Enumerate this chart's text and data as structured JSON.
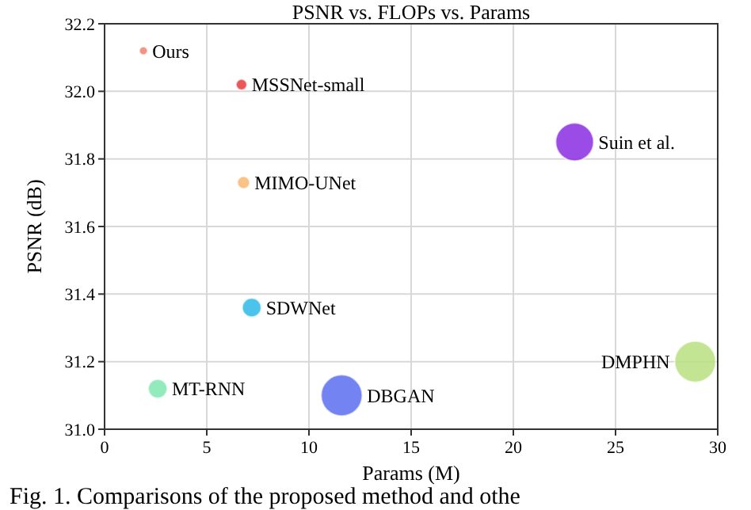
{
  "chart_data": {
    "type": "bubble",
    "title": "PSNR vs. FLOPs vs. Params",
    "xlabel": "Params (M)",
    "ylabel": "PSNR (dB)",
    "series": [
      {
        "name": "Ours",
        "color": "#f08070",
        "x": [
          1.9
        ],
        "values": [
          32.12
        ],
        "sizes": [
          0.04
        ]
      },
      {
        "name": "MSSNet-small",
        "color": "#e83a3a",
        "x": [
          6.7
        ],
        "values": [
          32.02
        ],
        "sizes": [
          0.07
        ]
      },
      {
        "name": "MIMO-UNet",
        "color": "#f8b870",
        "x": [
          6.8
        ],
        "values": [
          31.73
        ],
        "sizes": [
          0.09
        ]
      },
      {
        "name": "Suin et al.",
        "color": "#8a2be2",
        "x": [
          23.0
        ],
        "values": [
          31.85
        ],
        "sizes": [
          0.85
        ]
      },
      {
        "name": "SDWNet",
        "color": "#2bb8e8",
        "x": [
          7.2
        ],
        "values": [
          31.36
        ],
        "sizes": [
          0.21
        ]
      },
      {
        "name": "MT-RNN",
        "color": "#80e8b0",
        "x": [
          2.6
        ],
        "values": [
          31.12
        ],
        "sizes": [
          0.21
        ]
      },
      {
        "name": "DBGAN",
        "color": "#5a6ef0",
        "x": [
          11.6
        ],
        "values": [
          31.1
        ],
        "sizes": [
          1
        ]
      },
      {
        "name": "DMPHN",
        "color": "#b8e080",
        "x": [
          28.9
        ],
        "values": [
          31.2
        ],
        "sizes": [
          1
        ]
      }
    ],
    "xlim": [
      0,
      30
    ],
    "xticks": [
      0,
      5,
      10,
      15,
      20,
      25,
      30
    ],
    "ylim": [
      31.0,
      32.2
    ],
    "yticks": [
      {
        "value": 31.0,
        "label": "31.0"
      },
      31.2,
      31.4,
      31.6,
      31.8,
      {
        "value": 32.0,
        "label": "32.0"
      },
      32.2
    ],
    "grid": true,
    "annotations": [
      "Fig. 1. Comparisons of the proposed method and othe"
    ]
  }
}
